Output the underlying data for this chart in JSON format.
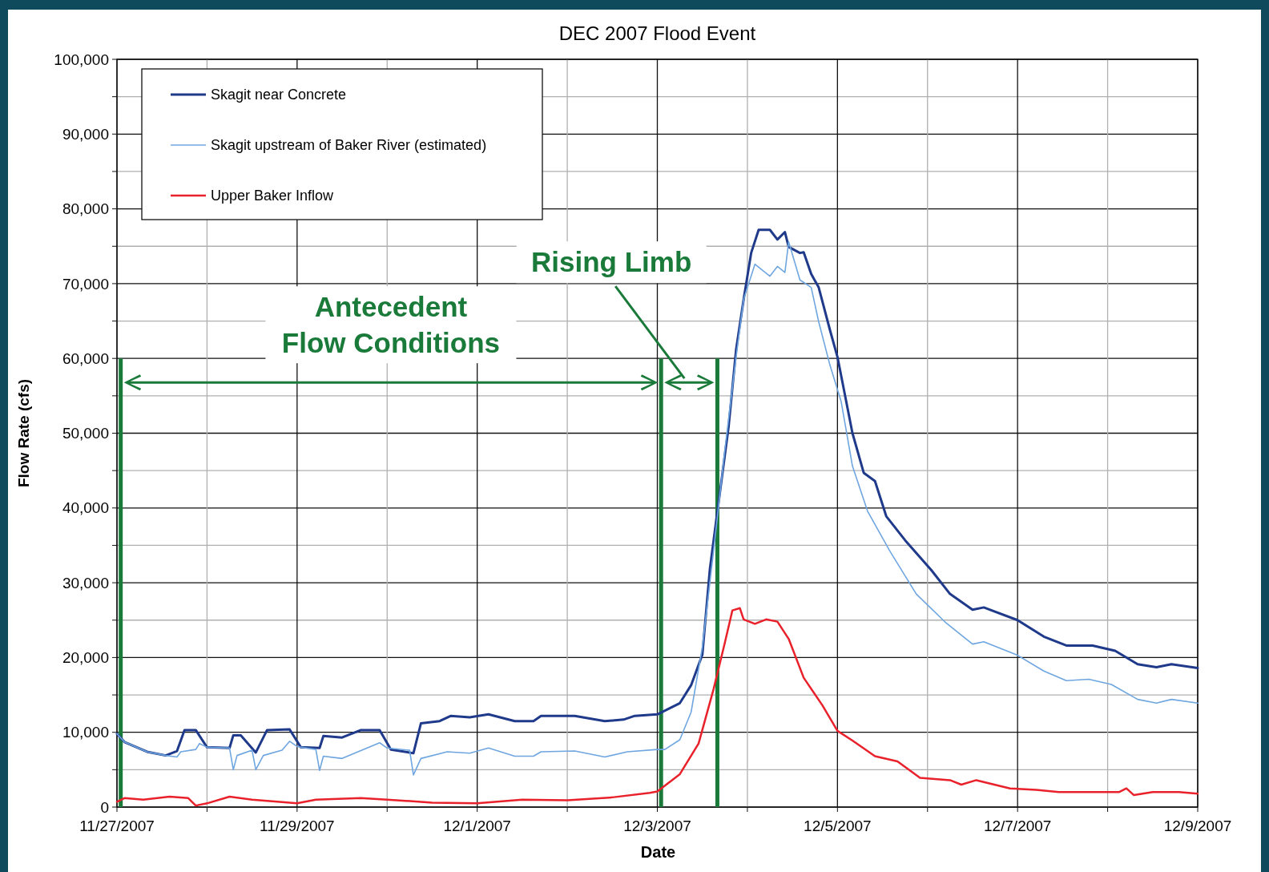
{
  "chart_data": {
    "type": "line",
    "title": "DEC 2007 Flood Event",
    "xlabel": "Date",
    "ylabel": "Flow Rate (cfs)",
    "xlim": [
      "2007-11-27",
      "2007-12-09"
    ],
    "xticks": [
      {
        "value": "2007-11-27",
        "label": "11/27/2007"
      },
      {
        "value": "2007-11-28",
        "label": null
      },
      {
        "value": "2007-11-29",
        "label": "11/29/2007"
      },
      {
        "value": "2007-11-30",
        "label": null
      },
      {
        "value": "2007-12-01",
        "label": "12/1/2007"
      },
      {
        "value": "2007-12-02",
        "label": null
      },
      {
        "value": "2007-12-03",
        "label": "12/3/2007"
      },
      {
        "value": "2007-12-04",
        "label": null
      },
      {
        "value": "2007-12-05",
        "label": "12/5/2007"
      },
      {
        "value": "2007-12-06",
        "label": null
      },
      {
        "value": "2007-12-07",
        "label": "12/7/2007"
      },
      {
        "value": "2007-12-08",
        "label": null
      },
      {
        "value": "2007-12-09",
        "label": "12/9/2007"
      }
    ],
    "ylim": [
      0,
      100000
    ],
    "yticks": [
      {
        "value": 0,
        "label": "0"
      },
      {
        "value": 5000,
        "label": null
      },
      {
        "value": 10000,
        "label": "10,000"
      },
      {
        "value": 15000,
        "label": null
      },
      {
        "value": 20000,
        "label": "20,000"
      },
      {
        "value": 25000,
        "label": null
      },
      {
        "value": 30000,
        "label": "30,000"
      },
      {
        "value": 35000,
        "label": null
      },
      {
        "value": 40000,
        "label": "40,000"
      },
      {
        "value": 45000,
        "label": null
      },
      {
        "value": 50000,
        "label": "50,000"
      },
      {
        "value": 55000,
        "label": null
      },
      {
        "value": 60000,
        "label": "60,000"
      },
      {
        "value": 65000,
        "label": null
      },
      {
        "value": 70000,
        "label": "70,000"
      },
      {
        "value": 75000,
        "label": null
      },
      {
        "value": 80000,
        "label": "80,000"
      },
      {
        "value": 85000,
        "label": null
      },
      {
        "value": 90000,
        "label": "90,000"
      },
      {
        "value": 95000,
        "label": null
      },
      {
        "value": 100000,
        "label": "100,000"
      }
    ],
    "grid": true,
    "legend": "top left",
    "line_style": "solid",
    "series": [
      {
        "name": "Skagit near Concrete",
        "color": "#1f3a8a",
        "x": [
          "2007-11-27T00:00",
          "2007-11-27T02:00",
          "2007-11-27T08:00",
          "2007-11-27T13:00",
          "2007-11-27T16:00",
          "2007-11-27T18:00",
          "2007-11-27T21:00",
          "2007-11-28T00:00",
          "2007-11-28T06:00",
          "2007-11-28T07:00",
          "2007-11-28T09:00",
          "2007-11-28T13:00",
          "2007-11-28T16:00",
          "2007-11-28T22:00",
          "2007-11-29T01:00",
          "2007-11-29T06:00",
          "2007-11-29T07:00",
          "2007-11-29T12:00",
          "2007-11-29T17:00",
          "2007-11-29T22:00",
          "2007-11-30T01:00",
          "2007-11-30T07:00",
          "2007-11-30T09:00",
          "2007-11-30T14:00",
          "2007-11-30T17:00",
          "2007-11-30T22:00",
          "2007-12-01T03:00",
          "2007-12-01T10:00",
          "2007-12-01T15:00",
          "2007-12-01T17:00",
          "2007-12-02T02:00",
          "2007-12-02T10:00",
          "2007-12-02T15:00",
          "2007-12-02T18:00",
          "2007-12-03T00:00",
          "2007-12-03T06:00",
          "2007-12-03T09:00",
          "2007-12-03T12:00",
          "2007-12-03T14:00",
          "2007-12-03T16:00",
          "2007-12-03T19:00",
          "2007-12-03T21:00",
          "2007-12-03T23:00",
          "2007-12-04T01:00",
          "2007-12-04T03:00",
          "2007-12-04T06:00",
          "2007-12-04T08:00",
          "2007-12-04T10:00",
          "2007-12-04T11:00",
          "2007-12-04T14:00",
          "2007-12-04T15:00",
          "2007-12-04T17:00",
          "2007-12-04T19:00",
          "2007-12-04T22:00",
          "2007-12-05T00:00",
          "2007-12-05T04:00",
          "2007-12-05T07:00",
          "2007-12-05T10:00",
          "2007-12-05T13:00",
          "2007-12-05T18:00",
          "2007-12-06T01:00",
          "2007-12-06T06:00",
          "2007-12-06T12:00",
          "2007-12-06T15:00",
          "2007-12-07T00:00",
          "2007-12-07T07:00",
          "2007-12-07T13:00",
          "2007-12-07T20:00",
          "2007-12-08T02:00",
          "2007-12-08T08:00",
          "2007-12-08T13:00",
          "2007-12-08T17:00",
          "2007-12-09T00:00"
        ],
        "values": [
          9800,
          8700,
          7400,
          6900,
          7500,
          10300,
          10300,
          8000,
          7900,
          9600,
          9600,
          7300,
          10300,
          10400,
          8000,
          7900,
          9500,
          9300,
          10300,
          10300,
          7700,
          7200,
          11200,
          11500,
          12200,
          12000,
          12400,
          11500,
          11500,
          12200,
          12200,
          11500,
          11700,
          12200,
          12400,
          13900,
          16300,
          20400,
          31800,
          39500,
          50900,
          61200,
          67900,
          74100,
          77200,
          77200,
          75900,
          76900,
          74900,
          74100,
          74200,
          71300,
          69500,
          63800,
          60200,
          50000,
          44700,
          43600,
          38900,
          35700,
          31700,
          28500,
          26400,
          26700,
          25000,
          22800,
          21600,
          21600,
          20900,
          19100,
          18700,
          19100,
          18600
        ]
      },
      {
        "name": "Skagit upstream of Baker River (estimated)",
        "color": "#6fa6e0",
        "x": [
          "2007-11-27T00:00",
          "2007-11-27T02:00",
          "2007-11-27T08:00",
          "2007-11-27T13:00",
          "2007-11-27T16:00",
          "2007-11-27T17:00",
          "2007-11-27T21:00",
          "2007-11-27T22:00",
          "2007-11-28T00:00",
          "2007-11-28T06:00",
          "2007-11-28T07:00",
          "2007-11-28T08:00",
          "2007-11-28T12:00",
          "2007-11-28T13:00",
          "2007-11-28T15:00",
          "2007-11-28T20:00",
          "2007-11-28T22:00",
          "2007-11-29T00:00",
          "2007-11-29T05:00",
          "2007-11-29T06:00",
          "2007-11-29T07:00",
          "2007-11-29T12:00",
          "2007-11-29T22:00",
          "2007-11-30T00:00",
          "2007-11-30T06:00",
          "2007-11-30T07:00",
          "2007-11-30T09:00",
          "2007-11-30T16:00",
          "2007-11-30T22:00",
          "2007-12-01T03:00",
          "2007-12-01T10:00",
          "2007-12-01T15:00",
          "2007-12-01T17:00",
          "2007-12-02T02:00",
          "2007-12-02T10:00",
          "2007-12-02T16:00",
          "2007-12-03T00:00",
          "2007-12-03T02:00",
          "2007-12-03T06:00",
          "2007-12-03T09:00",
          "2007-12-03T12:00",
          "2007-12-03T15:00",
          "2007-12-03T18:00",
          "2007-12-03T21:00",
          "2007-12-03T23:00",
          "2007-12-04T02:00",
          "2007-12-04T06:00",
          "2007-12-04T08:00",
          "2007-12-04T10:00",
          "2007-12-04T11:00",
          "2007-12-04T14:00",
          "2007-12-04T17:00",
          "2007-12-04T19:00",
          "2007-12-04T22:00",
          "2007-12-05T01:00",
          "2007-12-05T04:00",
          "2007-12-05T08:00",
          "2007-12-05T14:00",
          "2007-12-05T21:00",
          "2007-12-06T05:00",
          "2007-12-06T12:00",
          "2007-12-06T15:00",
          "2007-12-07T00:00",
          "2007-12-07T07:00",
          "2007-12-07T13:00",
          "2007-12-07T19:00",
          "2007-12-08T01:00",
          "2007-12-08T08:00",
          "2007-12-08T13:00",
          "2007-12-08T17:00",
          "2007-12-09T00:00"
        ],
        "values": [
          9800,
          8700,
          7400,
          6900,
          6700,
          7400,
          7700,
          8500,
          8000,
          7900,
          5000,
          6900,
          7600,
          5000,
          6900,
          7600,
          8800,
          8100,
          7700,
          4900,
          6800,
          6500,
          8600,
          7900,
          7600,
          4300,
          6500,
          7400,
          7200,
          7900,
          6800,
          6800,
          7400,
          7500,
          6700,
          7400,
          7700,
          7700,
          9000,
          12700,
          21400,
          34300,
          47800,
          60200,
          67900,
          72600,
          71000,
          72300,
          71500,
          75600,
          70500,
          69500,
          64900,
          59100,
          54200,
          45600,
          39600,
          34200,
          28500,
          24600,
          21800,
          22100,
          20300,
          18200,
          16900,
          17100,
          16400,
          14400,
          13900,
          14400,
          13900
        ]
      },
      {
        "name": "Upper Baker Inflow",
        "color": "#e8212b",
        "x": [
          "2007-11-27T00:00",
          "2007-11-27T02:00",
          "2007-11-27T07:00",
          "2007-11-27T14:00",
          "2007-11-27T19:00",
          "2007-11-27T21:00",
          "2007-11-28T00:00",
          "2007-11-28T06:00",
          "2007-11-28T12:00",
          "2007-11-29T00:00",
          "2007-11-29T05:00",
          "2007-11-29T17:00",
          "2007-11-30T00:00",
          "2007-11-30T12:00",
          "2007-12-01T00:00",
          "2007-12-01T12:00",
          "2007-12-02T00:00",
          "2007-12-02T12:00",
          "2007-12-02T22:00",
          "2007-12-03T00:00",
          "2007-12-03T06:00",
          "2007-12-03T11:00",
          "2007-12-03T15:00",
          "2007-12-03T18:00",
          "2007-12-03T20:00",
          "2007-12-03T22:00",
          "2007-12-03T23:00",
          "2007-12-04T02:00",
          "2007-12-04T05:00",
          "2007-12-04T08:00",
          "2007-12-04T11:00",
          "2007-12-04T15:00",
          "2007-12-04T20:00",
          "2007-12-05T00:00",
          "2007-12-05T04:00",
          "2007-12-05T10:00",
          "2007-12-05T16:00",
          "2007-12-05T22:00",
          "2007-12-06T06:00",
          "2007-12-06T09:00",
          "2007-12-06T13:00",
          "2007-12-06T22:00",
          "2007-12-07T05:00",
          "2007-12-07T11:00",
          "2007-12-07T19:00",
          "2007-12-08T03:00",
          "2007-12-08T05:00",
          "2007-12-08T07:00",
          "2007-12-08T12:00",
          "2007-12-08T19:00",
          "2007-12-09T00:00"
        ],
        "values": [
          700,
          1200,
          1000,
          1400,
          1200,
          200,
          500,
          1400,
          1000,
          500,
          1000,
          1200,
          1000,
          600,
          500,
          1000,
          900,
          1300,
          1900,
          2100,
          4400,
          8500,
          15800,
          22000,
          26300,
          26600,
          25100,
          24500,
          25100,
          24800,
          22500,
          17300,
          13600,
          10200,
          8900,
          6800,
          6100,
          3900,
          3600,
          3000,
          3600,
          2500,
          2300,
          2000,
          2000,
          2000,
          2500,
          1600,
          2000,
          2000,
          1800
        ]
      }
    ],
    "ref_lines": [
      {
        "axis": "x",
        "value": "2007-11-27T01:00",
        "label": null,
        "color": "#1a7a3a"
      },
      {
        "axis": "x",
        "value": "2007-12-03T01:00",
        "label": null,
        "color": "#1a7a3a"
      },
      {
        "axis": "x",
        "value": "2007-12-03T16:00",
        "label": null,
        "color": "#1a7a3a"
      }
    ],
    "annotations": [
      "Antecedent\nFlow Conditions",
      "Rising Limb"
    ]
  }
}
